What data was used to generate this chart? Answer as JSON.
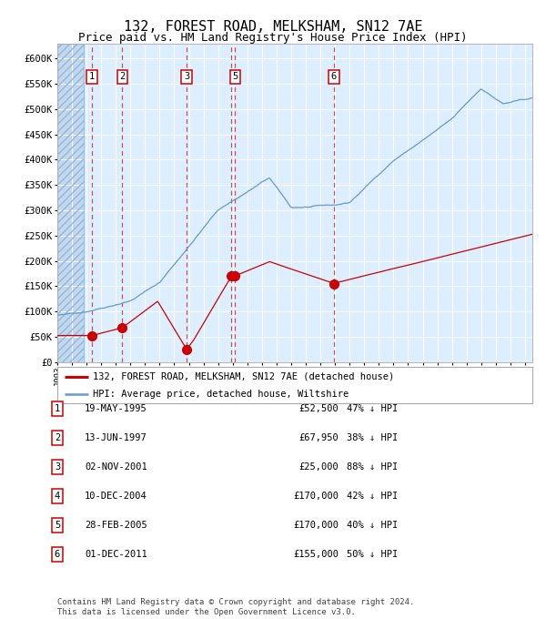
{
  "title": "132, FOREST ROAD, MELKSHAM, SN12 7AE",
  "subtitle": "Price paid vs. HM Land Registry's House Price Index (HPI)",
  "title_fontsize": 11,
  "subtitle_fontsize": 9,
  "background_color": "#ffffff",
  "plot_bg_color": "#ddeeff",
  "hatch_color": "#b8d0e8",
  "grid_color": "#ffffff",
  "ylim": [
    0,
    630000
  ],
  "yticks": [
    0,
    50000,
    100000,
    150000,
    200000,
    250000,
    300000,
    350000,
    400000,
    450000,
    500000,
    550000,
    600000
  ],
  "legend_label_red": "132, FOREST ROAD, MELKSHAM, SN12 7AE (detached house)",
  "legend_label_blue": "HPI: Average price, detached house, Wiltshire",
  "footnote": "Contains HM Land Registry data © Crown copyright and database right 2024.\nThis data is licensed under the Open Government Licence v3.0.",
  "sale_dates_num": [
    1995.38,
    1997.45,
    2001.84,
    2004.92,
    2005.16,
    2011.92
  ],
  "sale_prices": [
    52500,
    67950,
    25000,
    170000,
    170000,
    155000
  ],
  "transaction_table": [
    {
      "num": "1",
      "date": "19-MAY-1995",
      "price": "£52,500",
      "pct": "47% ↓ HPI"
    },
    {
      "num": "2",
      "date": "13-JUN-1997",
      "price": "£67,950",
      "pct": "38% ↓ HPI"
    },
    {
      "num": "3",
      "date": "02-NOV-2001",
      "price": "£25,000",
      "pct": "88% ↓ HPI"
    },
    {
      "num": "4",
      "date": "10-DEC-2004",
      "price": "£170,000",
      "pct": "42% ↓ HPI"
    },
    {
      "num": "5",
      "date": "28-FEB-2005",
      "price": "£170,000",
      "pct": "40% ↓ HPI"
    },
    {
      "num": "6",
      "date": "01-DEC-2011",
      "price": "£155,000",
      "pct": "50% ↓ HPI"
    }
  ],
  "red_line_color": "#cc0000",
  "blue_line_color": "#6699cc",
  "dot_color": "#cc0000",
  "dashed_line_color": "#cc3333",
  "box_edge_color": "#cc0000",
  "box_fill_color": "#ffffff",
  "start_year": 1993.0,
  "end_year": 2025.5,
  "shown_box_indices": [
    0,
    1,
    2,
    4,
    5
  ]
}
